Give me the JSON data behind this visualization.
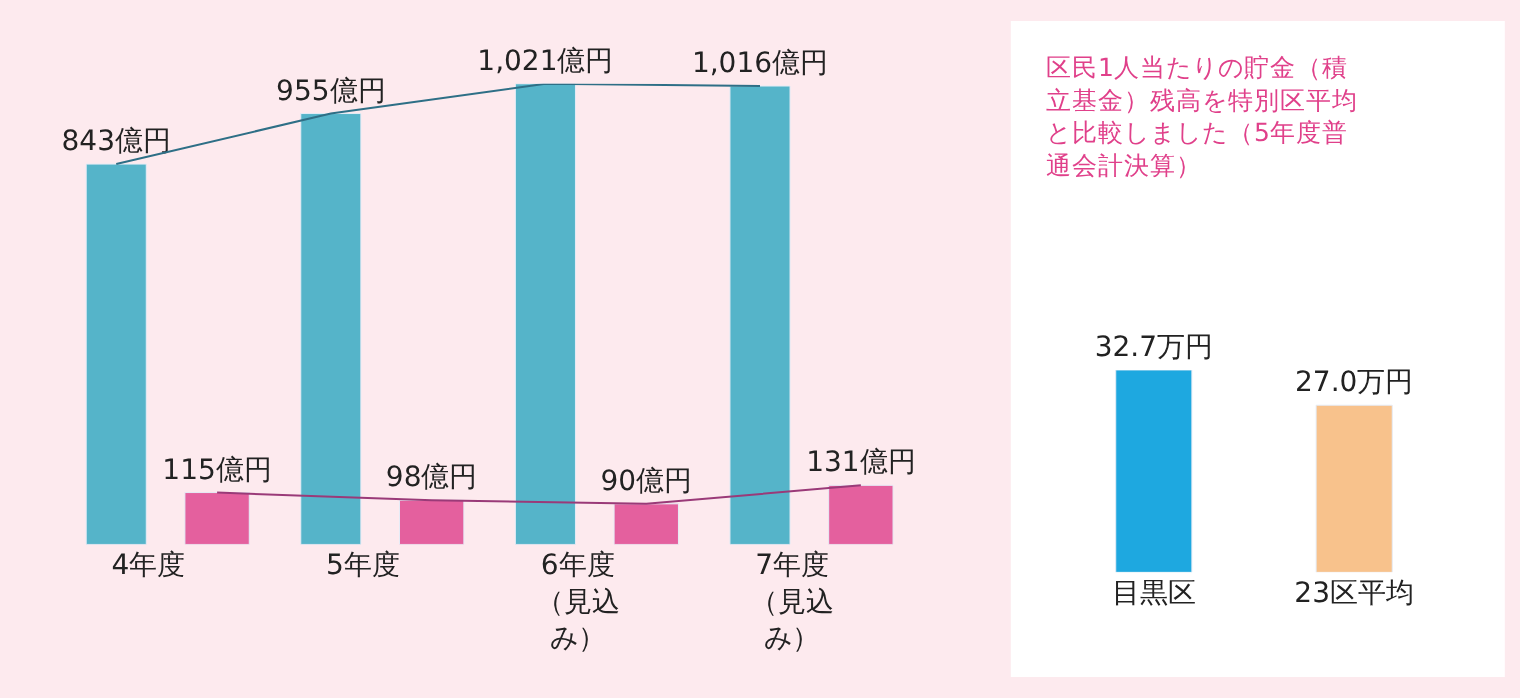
{
  "chart_data": [
    {
      "type": "bar",
      "categories": [
        "4年度",
        "5年度",
        "6年度（見込み）",
        "7年度（見込み）"
      ],
      "series": [
        {
          "color": "#55b4c9",
          "values": [
            843,
            955,
            1021,
            1016
          ],
          "value_labels": [
            "843億円",
            "955億円",
            "1,021億円",
            "1,016億円"
          ]
        },
        {
          "color": "#e4609e",
          "values": [
            115,
            98,
            90,
            131
          ],
          "value_labels": [
            "115億円",
            "98億円",
            "90億円",
            "131億円"
          ]
        },
        {
          "type": "line",
          "color": "#2e6f86",
          "values": [
            843,
            955,
            1021,
            1016
          ]
        },
        {
          "type": "line",
          "color": "#9a3a78",
          "values": [
            115,
            98,
            90,
            131
          ]
        }
      ]
    },
    {
      "type": "bar",
      "title": "区民1人当たりの貯金（積立基金）残高を特別区平均と比較しました（5年度普通会計決算）",
      "categories": [
        "目黒区",
        "23区平均"
      ],
      "values": [
        32.7,
        27.0
      ],
      "colors": [
        "#1ea8e0",
        "#f8c28c"
      ],
      "value_labels": [
        "32.7万円",
        "27.0万円"
      ]
    }
  ]
}
